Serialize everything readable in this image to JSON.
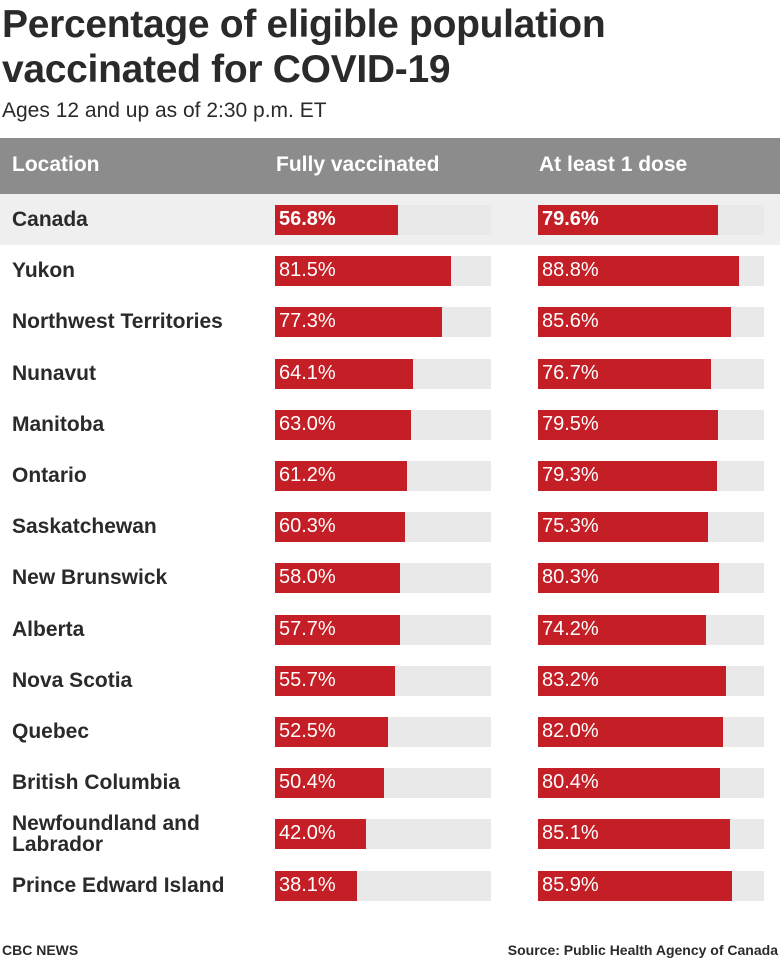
{
  "title": "Percentage of eligible population vaccinated for COVID-19",
  "subtitle": "Ages 12 and up as of 2:30 p.m. ET",
  "header": {
    "location": "Location",
    "fully": "Fully vaccinated",
    "dose": "At least 1 dose"
  },
  "footer": {
    "credit": "CBC NEWS",
    "source": "Source: Public Health Agency of Canada"
  },
  "colors": {
    "bar": "#c41f26",
    "track": "#e9e9e9",
    "header": "#8c8c8c",
    "highlight_row": "#efefef"
  },
  "chart_data": {
    "type": "bar",
    "orientation": "horizontal",
    "axis_range": [
      0,
      100
    ],
    "units": "%",
    "categories": [
      "Canada",
      "Yukon",
      "Northwest Territories",
      "Nunavut",
      "Manitoba",
      "Ontario",
      "Saskatchewan",
      "New Brunswick",
      "Alberta",
      "Nova Scotia",
      "Quebec",
      "British Columbia",
      "Newfoundland and Labrador",
      "Prince Edward Island"
    ],
    "highlight": "Canada",
    "series": [
      {
        "name": "Fully vaccinated",
        "values": [
          56.8,
          81.5,
          77.3,
          64.1,
          63.0,
          61.2,
          60.3,
          58.0,
          57.7,
          55.7,
          52.5,
          50.4,
          42.0,
          38.1
        ],
        "labels": [
          "56.8%",
          "81.5%",
          "77.3%",
          "64.1%",
          "63.0%",
          "61.2%",
          "60.3%",
          "58.0%",
          "57.7%",
          "55.7%",
          "52.5%",
          "50.4%",
          "42.0%",
          "38.1%"
        ]
      },
      {
        "name": "At least 1 dose",
        "values": [
          79.6,
          88.8,
          85.6,
          76.7,
          79.5,
          79.3,
          75.3,
          80.3,
          74.2,
          83.2,
          82.0,
          80.4,
          85.1,
          85.9
        ],
        "labels": [
          "79.6%",
          "88.8%",
          "85.6%",
          "76.7%",
          "79.5%",
          "79.3%",
          "75.3%",
          "80.3%",
          "74.2%",
          "83.2%",
          "82.0%",
          "80.4%",
          "85.1%",
          "85.9%"
        ]
      }
    ]
  }
}
